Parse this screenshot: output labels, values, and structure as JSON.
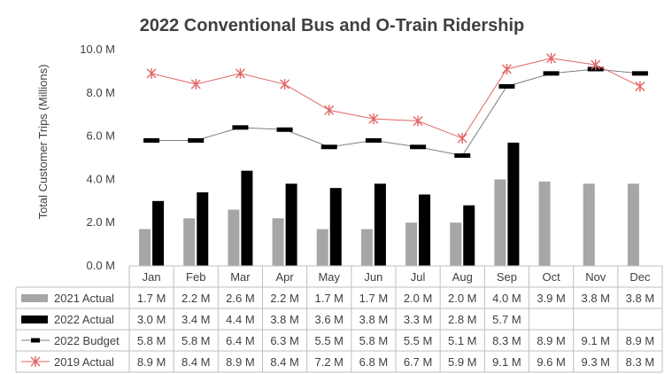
{
  "chart_data": {
    "type": "bar",
    "title": "2022 Conventional Bus and O-Train Ridership",
    "ylabel": "Total Customer Trips (Millions)",
    "xlabel": "",
    "ylim": [
      0,
      10
    ],
    "yticks": [
      0,
      2,
      4,
      6,
      8,
      10
    ],
    "ytick_labels": [
      "0.0 M",
      "2.0 M",
      "4.0 M",
      "6.0 M",
      "8.0 M",
      "10.0 M"
    ],
    "categories": [
      "Jan",
      "Feb",
      "Mar",
      "Apr",
      "May",
      "Jun",
      "Jul",
      "Aug",
      "Sep",
      "Oct",
      "Nov",
      "Dec"
    ],
    "grid": false,
    "legend": "data-table",
    "series": [
      {
        "name": "2021 Actual",
        "kind": "bar",
        "color": "#a6a6a6",
        "values": [
          1.7,
          2.2,
          2.6,
          2.2,
          1.7,
          1.7,
          2.0,
          2.0,
          4.0,
          3.9,
          3.8,
          3.8
        ],
        "labels": [
          "1.7 M",
          "2.2 M",
          "2.6 M",
          "2.2 M",
          "1.7 M",
          "1.7 M",
          "2.0 M",
          "2.0 M",
          "4.0 M",
          "3.9 M",
          "3.8 M",
          "3.8 M"
        ]
      },
      {
        "name": "2022 Actual",
        "kind": "bar",
        "color": "#000000",
        "values": [
          3.0,
          3.4,
          4.4,
          3.8,
          3.6,
          3.8,
          3.3,
          2.8,
          5.7,
          null,
          null,
          null
        ],
        "labels": [
          "3.0 M",
          "3.4 M",
          "4.4 M",
          "3.8 M",
          "3.6 M",
          "3.8 M",
          "3.3 M",
          "2.8 M",
          "5.7 M",
          "",
          "",
          ""
        ]
      },
      {
        "name": "2022 Budget",
        "kind": "line-dash-marker",
        "color": "#7f7f7f",
        "marker_color": "#000000",
        "values": [
          5.8,
          5.8,
          6.4,
          6.3,
          5.5,
          5.8,
          5.5,
          5.1,
          8.3,
          8.9,
          9.1,
          8.9
        ],
        "labels": [
          "5.8 M",
          "5.8 M",
          "6.4 M",
          "6.3 M",
          "5.5 M",
          "5.8 M",
          "5.5 M",
          "5.1 M",
          "8.3 M",
          "8.9 M",
          "9.1 M",
          "8.9 M"
        ]
      },
      {
        "name": "2019 Actual",
        "kind": "line-star-marker",
        "color": "#e06666",
        "values": [
          8.9,
          8.4,
          8.9,
          8.4,
          7.2,
          6.8,
          6.7,
          5.9,
          9.1,
          9.6,
          9.3,
          8.3
        ],
        "labels": [
          "8.9 M",
          "8.4 M",
          "8.9 M",
          "8.4 M",
          "7.2 M",
          "6.8 M",
          "6.7 M",
          "5.9 M",
          "9.1 M",
          "9.6 M",
          "9.3 M",
          "8.3 M"
        ]
      }
    ]
  }
}
